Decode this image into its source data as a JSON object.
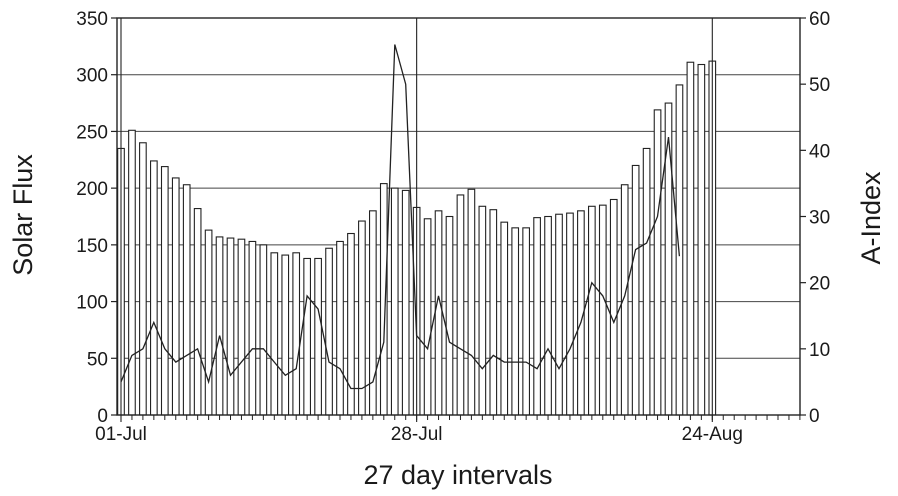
{
  "chart_data": {
    "type": "bar",
    "title": "",
    "xlabel": "27 day intervals",
    "ylabel": "Solar Flux",
    "y2label": "A-Index",
    "ylim": [
      0,
      350
    ],
    "y2lim": [
      0,
      60
    ],
    "yticks": [
      0,
      50,
      100,
      150,
      200,
      250,
      300,
      350
    ],
    "y2ticks": [
      0,
      10,
      20,
      30,
      40,
      50,
      60
    ],
    "grid": "horizontal",
    "x_tick_labels": [
      {
        "day": 0,
        "label": "01-Jul"
      },
      {
        "day": 27,
        "label": "28-Jul"
      },
      {
        "day": 54,
        "label": "24-Aug"
      }
    ],
    "series": [
      {
        "type": "bar",
        "axis": "left",
        "values": [
          235,
          251,
          240,
          224,
          219,
          209,
          203,
          182,
          163,
          157,
          156,
          155,
          153,
          150,
          143,
          141,
          143,
          138,
          138,
          147,
          153,
          160,
          171,
          180,
          204,
          200,
          198,
          183,
          173,
          180,
          175,
          194,
          199,
          184,
          181,
          170,
          165,
          165,
          174,
          175,
          177,
          178,
          180,
          184,
          185,
          190,
          203,
          220,
          235,
          269,
          275,
          291,
          311,
          309,
          312
        ]
      },
      {
        "type": "line",
        "axis": "right",
        "values": [
          5,
          9,
          10,
          14,
          10,
          8,
          9,
          10,
          5,
          12,
          6,
          8,
          10,
          10,
          8,
          6,
          7,
          18,
          16,
          8,
          7,
          4,
          4,
          5,
          11,
          56,
          50,
          12,
          10,
          18,
          11,
          10,
          9,
          7,
          9,
          8,
          8,
          8,
          7,
          10,
          7,
          10,
          14,
          20,
          18,
          14,
          18,
          25,
          26,
          30,
          42,
          24
        ]
      }
    ]
  }
}
